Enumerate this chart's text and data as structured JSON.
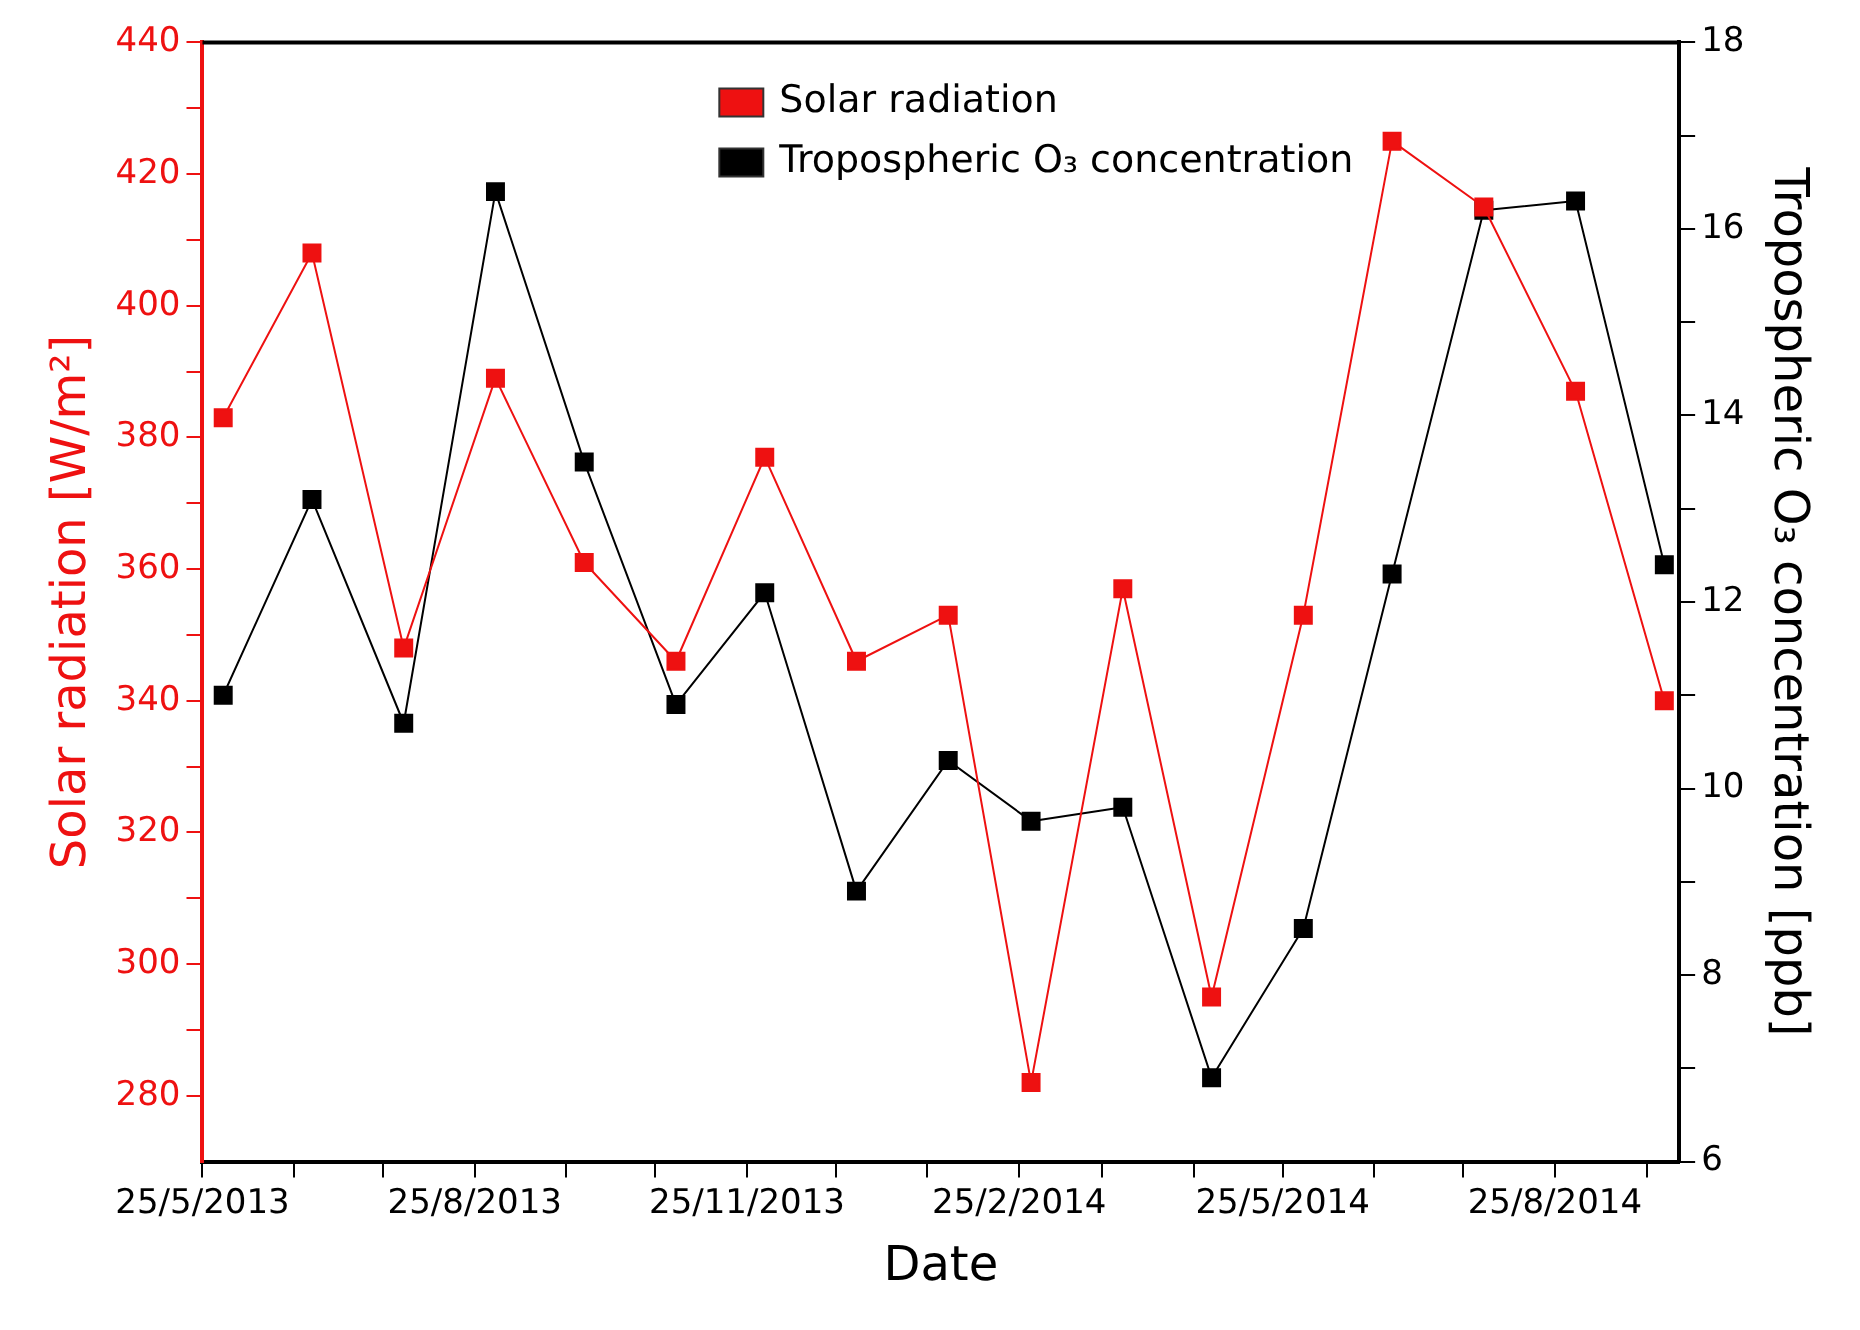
{
  "chart_data": {
    "type": "line",
    "xlabel": "Date",
    "ylabel": "Solar radiation [W/m²]",
    "y2label": "Tropospheric O₃ concentration [ppb]",
    "x": [
      "2013-06-01",
      "2013-07-01",
      "2013-08-01",
      "2013-09-01",
      "2013-10-01",
      "2013-11-01",
      "2013-12-01",
      "2014-01-01",
      "2014-02-01",
      "2014-03-01",
      "2014-04-01",
      "2014-05-01",
      "2014-06-01",
      "2014-07-01",
      "2014-08-01",
      "2014-09-01",
      "2014-10-01"
    ],
    "series": [
      {
        "name": "Solar radiation",
        "color": "#ee1111",
        "values": [
          383,
          408,
          348,
          389,
          361,
          346,
          377,
          346,
          353,
          282,
          357,
          295,
          353,
          425,
          415,
          387,
          340
        ]
      },
      {
        "name": "Tropospheric O₃ concentration",
        "color": "#000000",
        "axis": "y2",
        "values": [
          11.0,
          13.1,
          10.7,
          16.4,
          13.5,
          10.9,
          12.1,
          8.9,
          10.3,
          9.65,
          9.8,
          6.9,
          8.5,
          12.3,
          16.2,
          16.3,
          12.4
        ]
      }
    ],
    "xlim": [
      "2013-05-25",
      "2014-10-06"
    ],
    "xticks": [
      {
        "value": "2013-05-25",
        "label": "25/5/2013"
      },
      {
        "value": "2013-06-25",
        "label": null
      },
      {
        "value": "2013-07-25",
        "label": null
      },
      {
        "value": "2013-08-25",
        "label": "25/8/2013"
      },
      {
        "value": "2013-09-25",
        "label": null
      },
      {
        "value": "2013-10-25",
        "label": null
      },
      {
        "value": "2013-11-25",
        "label": "25/11/2013"
      },
      {
        "value": "2013-12-25",
        "label": null
      },
      {
        "value": "2014-01-25",
        "label": null
      },
      {
        "value": "2014-02-25",
        "label": "25/2/2014"
      },
      {
        "value": "2014-03-25",
        "label": null
      },
      {
        "value": "2014-04-25",
        "label": null
      },
      {
        "value": "2014-05-25",
        "label": "25/5/2014"
      },
      {
        "value": "2014-06-25",
        "label": null
      },
      {
        "value": "2014-07-25",
        "label": null
      },
      {
        "value": "2014-08-25",
        "label": "25/8/2014"
      },
      {
        "value": "2014-09-25",
        "label": null
      }
    ],
    "ylim": [
      270,
      440
    ],
    "yticks": [
      280,
      {
        "value": 290,
        "label": null
      },
      300,
      {
        "value": 310,
        "label": null
      },
      320,
      {
        "value": 330,
        "label": null
      },
      340,
      {
        "value": 350,
        "label": null
      },
      360,
      {
        "value": 370,
        "label": null
      },
      380,
      {
        "value": 390,
        "label": null
      },
      400,
      {
        "value": 410,
        "label": null
      },
      420,
      {
        "value": 430,
        "label": null
      },
      440
    ],
    "y2lim": [
      6,
      18
    ],
    "y2ticks": [
      6,
      {
        "value": 7,
        "label": null
      },
      8,
      {
        "value": 9,
        "label": null
      },
      10,
      {
        "value": 11,
        "label": null
      },
      12,
      {
        "value": 13,
        "label": null
      },
      14,
      {
        "value": 15,
        "label": null
      },
      16,
      {
        "value": 17,
        "label": null
      },
      18
    ],
    "grid": false,
    "legend": "top",
    "marker": "square",
    "line_style": "solid"
  }
}
